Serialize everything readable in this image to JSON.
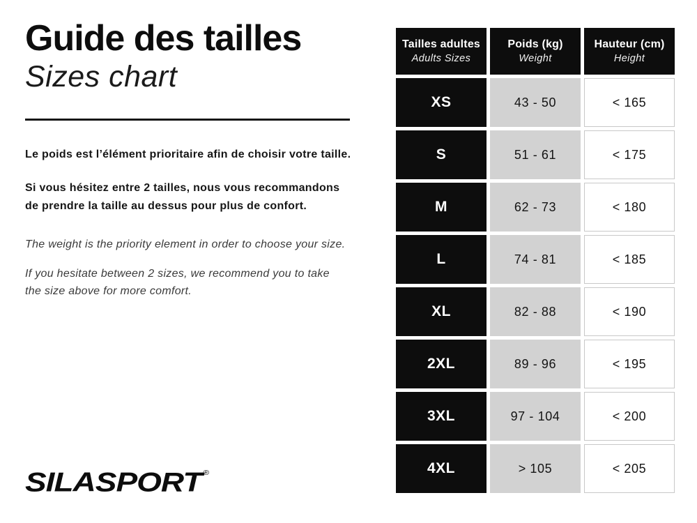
{
  "intro": {
    "title_fr": "Guide des tailles",
    "title_en": "Sizes chart",
    "fr_paragraph1": "Le poids est l’élément prioritaire afin de choisir votre taille.",
    "fr_paragraph2": "Si vous hésitez entre 2 tailles, nous vous recommandons\nde prendre la taille au dessus pour plus de confort.",
    "en_paragraph1": "The weight is the priority element in order to choose your size.",
    "en_paragraph2": "If you hesitate between 2 sizes, we recommend you to take\nthe size above for more comfort."
  },
  "brand": {
    "logo_text": "SILASPORT",
    "registered_mark": "®"
  },
  "table": {
    "header": {
      "sizes_fr": "Tailles adultes",
      "sizes_en": "Adults Sizes",
      "weight_fr": "Poids (kg)",
      "weight_en": "Weight",
      "height_fr": "Hauteur (cm)",
      "height_en": "Height"
    },
    "rows": [
      {
        "size": "XS",
        "weight": "43 - 50",
        "height": "< 165"
      },
      {
        "size": "S",
        "weight": "51 - 61",
        "height": "< 175"
      },
      {
        "size": "M",
        "weight": "62 - 73",
        "height": "< 180"
      },
      {
        "size": "L",
        "weight": "74 - 81",
        "height": "< 185"
      },
      {
        "size": "XL",
        "weight": "82 - 88",
        "height": "< 190"
      },
      {
        "size": "2XL",
        "weight": "89 - 96",
        "height": "< 195"
      },
      {
        "size": "3XL",
        "weight": "97 - 104",
        "height": "< 200"
      },
      {
        "size": "4XL",
        "weight": "> 105",
        "height": "< 205"
      }
    ]
  },
  "colors": {
    "black": "#0d0d0d",
    "gray_cell": "#d2d2d2",
    "cell_border": "#c8c8c8",
    "secondary_text": "#3a3a3a"
  }
}
